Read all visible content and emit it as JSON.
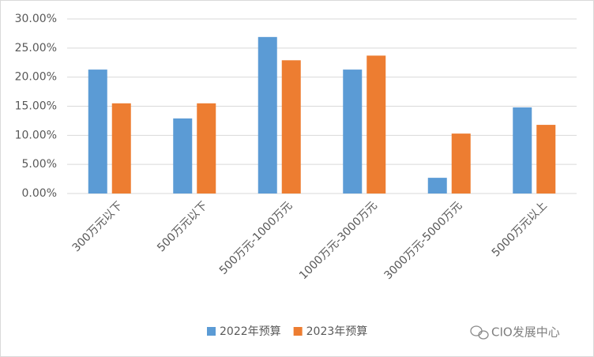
{
  "chart_data": {
    "type": "bar",
    "categories": [
      "300万元以下",
      "500万元以下",
      "500万元-1000万元",
      "1000万元-3000万元",
      "3000万元-5000万元",
      "5000万元以上"
    ],
    "series": [
      {
        "name": "2022年预算",
        "color": "#5b9bd5",
        "values": [
          21.3,
          12.9,
          26.9,
          21.3,
          2.7,
          14.8
        ]
      },
      {
        "name": "2023年预算",
        "color": "#ed7d31",
        "values": [
          15.5,
          15.5,
          22.9,
          23.7,
          10.3,
          11.8
        ]
      }
    ],
    "ylim": [
      0,
      30
    ],
    "yticks": [
      {
        "value": 0,
        "label": "0.00%"
      },
      {
        "value": 5,
        "label": "5.00%"
      },
      {
        "value": 10,
        "label": "10.00%"
      },
      {
        "value": 15,
        "label": "15.00%"
      },
      {
        "value": 20,
        "label": "20.00%"
      },
      {
        "value": 25,
        "label": "25.00%"
      },
      {
        "value": 30,
        "label": "30.00%"
      }
    ],
    "grid": true,
    "legend": "bottom",
    "watermark": "CIO发展中心"
  }
}
